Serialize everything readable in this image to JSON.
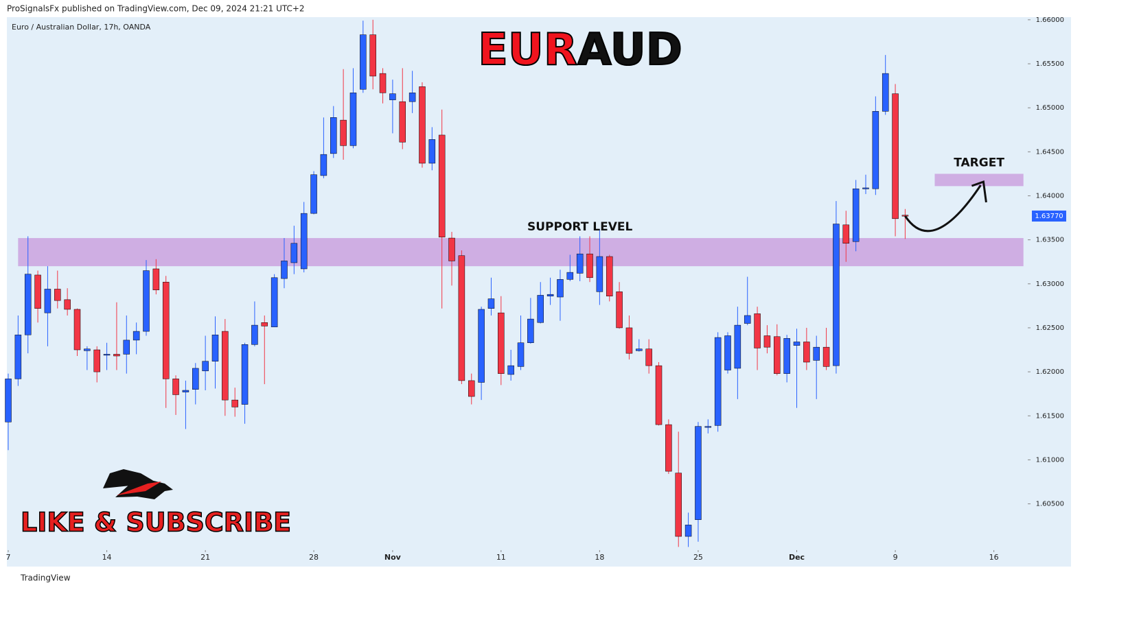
{
  "header": "ProSignalsFx published on TradingView.com, Dec 09, 2024 21:21 UTC+2",
  "footer": "TradingView",
  "watermark": "LIKE & SUBSCRIBE",
  "chart_data": {
    "type": "candlestick",
    "subtitle": "Euro / Australian Dollar, 17h, OANDA",
    "title": [
      {
        "text": "EUR",
        "color": "#f0141e"
      },
      {
        "text": "AUD",
        "color": "#111111"
      }
    ],
    "up_color": "#2962ff",
    "down_color": "#f23645",
    "open": [
      1.6143,
      1.6192,
      1.6242,
      1.631,
      1.6267,
      1.6294,
      1.6282,
      1.6271,
      1.6224,
      1.6225,
      1.6219,
      1.622,
      1.622,
      1.6236,
      1.6246,
      1.6317,
      1.6302,
      1.6192,
      1.6177,
      1.618,
      1.6201,
      1.6212,
      1.6246,
      1.6168,
      1.6163,
      1.6231,
      1.6256,
      1.6251,
      1.6306,
      1.6324,
      1.6317,
      1.638,
      1.6423,
      1.6448,
      1.6486,
      1.6457,
      1.6521,
      1.6583,
      1.6539,
      1.6509,
      1.6507,
      1.6507,
      1.6524,
      1.6437,
      1.6469,
      1.6352,
      1.6332,
      1.619,
      1.6188,
      1.6272,
      1.6267,
      1.6197,
      1.6206,
      1.6233,
      1.6256,
      1.6286,
      1.6285,
      1.6305,
      1.6312,
      1.6334,
      1.6291,
      1.6331,
      1.6291,
      1.625,
      1.6224,
      1.6226,
      1.6207,
      1.614,
      1.6085,
      1.6013,
      1.6032,
      1.6137,
      1.6139,
      1.6202,
      1.6204,
      1.6255,
      1.6266,
      1.6241,
      1.624,
      1.6198,
      1.623,
      1.6234,
      1.6213,
      1.6228,
      1.6207,
      1.6367,
      1.6348,
      1.6408,
      1.6408,
      1.6496,
      1.6516,
      1.6378
    ],
    "high": [
      1.6198,
      1.6264,
      1.6354,
      1.6315,
      1.632,
      1.6315,
      1.6295,
      1.6272,
      1.6229,
      1.6229,
      1.6233,
      1.6279,
      1.6264,
      1.6256,
      1.6327,
      1.6328,
      1.6309,
      1.6196,
      1.619,
      1.621,
      1.6241,
      1.6263,
      1.626,
      1.6182,
      1.6233,
      1.628,
      1.6264,
      1.6311,
      1.6352,
      1.6366,
      1.6393,
      1.6428,
      1.6489,
      1.6502,
      1.6544,
      1.6545,
      1.6599,
      1.66,
      1.6545,
      1.6532,
      1.6545,
      1.6542,
      1.6529,
      1.6478,
      1.6498,
      1.6359,
      1.6338,
      1.6198,
      1.6274,
      1.6307,
      1.6286,
      1.6225,
      1.6264,
      1.6284,
      1.6302,
      1.6307,
      1.6316,
      1.6333,
      1.6354,
      1.6354,
      1.6362,
      1.6333,
      1.6302,
      1.6264,
      1.6237,
      1.6237,
      1.6211,
      1.6146,
      1.6132,
      1.604,
      1.6143,
      1.6146,
      1.6245,
      1.6245,
      1.6274,
      1.6308,
      1.6274,
      1.6253,
      1.6254,
      1.6242,
      1.6249,
      1.625,
      1.6241,
      1.625,
      1.6394,
      1.6383,
      1.6418,
      1.6424,
      1.6513,
      1.656,
      1.6527,
      1.6385
    ],
    "low": [
      1.6111,
      1.6184,
      1.6221,
      1.6256,
      1.6229,
      1.6272,
      1.6264,
      1.6218,
      1.6202,
      1.6188,
      1.6202,
      1.6202,
      1.6198,
      1.622,
      1.6241,
      1.6288,
      1.6159,
      1.6151,
      1.6135,
      1.6163,
      1.6179,
      1.6181,
      1.615,
      1.6149,
      1.6141,
      1.6229,
      1.6186,
      1.6251,
      1.6295,
      1.6311,
      1.6313,
      1.6379,
      1.642,
      1.6443,
      1.6441,
      1.6454,
      1.6517,
      1.6521,
      1.6505,
      1.6471,
      1.6453,
      1.6494,
      1.6432,
      1.6429,
      1.6272,
      1.6298,
      1.6186,
      1.6163,
      1.6168,
      1.6264,
      1.6185,
      1.619,
      1.6202,
      1.6232,
      1.6255,
      1.6276,
      1.6258,
      1.6303,
      1.6303,
      1.6302,
      1.6276,
      1.628,
      1.6249,
      1.6214,
      1.6223,
      1.6198,
      1.6139,
      1.6084,
      1.6001,
      1.6001,
      1.6007,
      1.613,
      1.6132,
      1.6198,
      1.6169,
      1.6253,
      1.6202,
      1.6221,
      1.6196,
      1.6188,
      1.6159,
      1.6202,
      1.6169,
      1.6202,
      1.6198,
      1.6325,
      1.6337,
      1.6402,
      1.6401,
      1.6492,
      1.6354,
      1.6351
    ],
    "close": [
      1.6192,
      1.6242,
      1.6311,
      1.6272,
      1.6294,
      1.6281,
      1.6271,
      1.6225,
      1.6226,
      1.62,
      1.622,
      1.6218,
      1.6236,
      1.6246,
      1.6315,
      1.6293,
      1.6192,
      1.6174,
      1.6179,
      1.6204,
      1.6212,
      1.6242,
      1.6168,
      1.616,
      1.6231,
      1.6253,
      1.6252,
      1.6307,
      1.6326,
      1.6346,
      1.638,
      1.6424,
      1.6447,
      1.6489,
      1.6457,
      1.6517,
      1.6583,
      1.6536,
      1.6517,
      1.6516,
      1.6461,
      1.6517,
      1.6437,
      1.6464,
      1.6353,
      1.6326,
      1.619,
      1.6172,
      1.6271,
      1.6283,
      1.6198,
      1.6207,
      1.6233,
      1.626,
      1.6287,
      1.6288,
      1.6305,
      1.6313,
      1.6334,
      1.6307,
      1.6331,
      1.6286,
      1.625,
      1.6221,
      1.6226,
      1.6207,
      1.614,
      1.6087,
      1.6013,
      1.6026,
      1.6138,
      1.6138,
      1.6239,
      1.6241,
      1.6253,
      1.6264,
      1.6227,
      1.6228,
      1.6198,
      1.6238,
      1.6234,
      1.6211,
      1.6228,
      1.6206,
      1.6368,
      1.6346,
      1.6408,
      1.6409,
      1.6496,
      1.6539,
      1.6374,
      1.6377
    ],
    "xlim": [
      -0.14,
      103.3
    ],
    "xticks": [
      {
        "value": 0,
        "label": "7"
      },
      {
        "value": 10,
        "label": "14"
      },
      {
        "value": 20,
        "label": "21"
      },
      {
        "value": 31,
        "label": "28"
      },
      {
        "value": 39,
        "label": "Nov"
      },
      {
        "value": 50,
        "label": "11"
      },
      {
        "value": 60,
        "label": "18"
      },
      {
        "value": 70,
        "label": "25"
      },
      {
        "value": 80,
        "label": "Dec"
      },
      {
        "value": 90,
        "label": "9"
      },
      {
        "value": 100,
        "label": "16"
      }
    ],
    "ylim": [
      1.5999,
      1.6603
    ],
    "yticks": [
      {
        "value": 1.605,
        "label": "1.60500"
      },
      {
        "value": 1.61,
        "label": "1.61000"
      },
      {
        "value": 1.615,
        "label": "1.61500"
      },
      {
        "value": 1.62,
        "label": "1.62000"
      },
      {
        "value": 1.625,
        "label": "1.62500"
      },
      {
        "value": 1.63,
        "label": "1.63000"
      },
      {
        "value": 1.635,
        "label": "1.63500"
      },
      {
        "value": 1.64,
        "label": "1.64000"
      },
      {
        "value": 1.645,
        "label": "1.64500"
      },
      {
        "value": 1.65,
        "label": "1.65000"
      },
      {
        "value": 1.655,
        "label": "1.65500"
      },
      {
        "value": 1.66,
        "label": "1.66000"
      }
    ],
    "last_price": {
      "value": 1.6377,
      "label": "1.63770"
    },
    "zones": [
      {
        "label": "SUPPORT LEVEL",
        "y": [
          1.632,
          1.6352
        ],
        "x": [
          1,
          103
        ],
        "color": "#cfaee3"
      },
      {
        "label": "TARGET",
        "y": [
          1.6411,
          1.6425
        ],
        "x": [
          94,
          103
        ],
        "color": "#cfaee3"
      }
    ]
  }
}
